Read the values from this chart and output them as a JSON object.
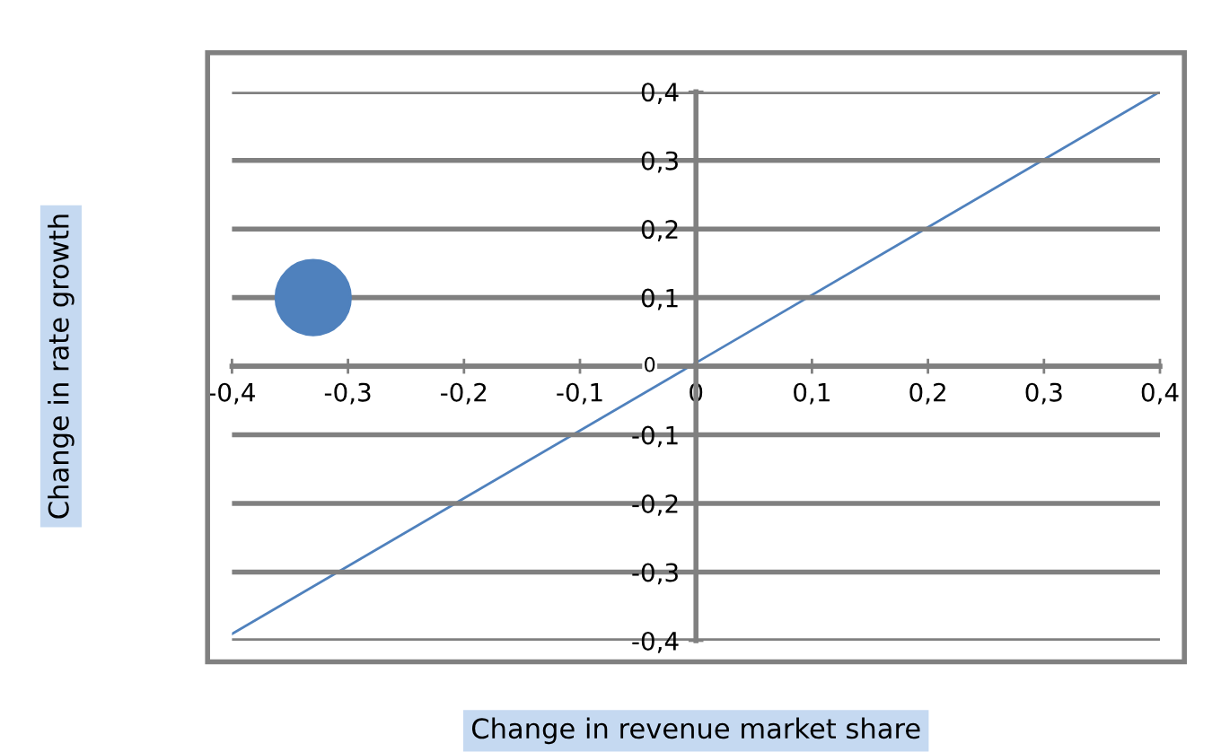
{
  "chart_data": {
    "type": "scatter",
    "xlabel": "Change in revenue market share",
    "ylabel": "Change in rate growth",
    "series": [
      {
        "color": "#4f81bd",
        "x": [
          -0.33
        ],
        "values": [
          0.1
        ],
        "marker": "circle"
      },
      {
        "type": "line",
        "color": "#4f81bd",
        "x": [
          -0.4,
          0.4
        ],
        "values": [
          -0.39,
          0.4
        ],
        "marker": "none",
        "line_style": "solid"
      }
    ],
    "xlim": [
      -0.4,
      0.4
    ],
    "ylim": [
      -0.4,
      0.4
    ],
    "xticks": [
      {
        "value": -0.4,
        "label": "-0,4"
      },
      {
        "value": -0.3,
        "label": "-0,3"
      },
      {
        "value": -0.2,
        "label": "-0,2"
      },
      {
        "value": -0.1,
        "label": "-0,1"
      },
      {
        "value": 0,
        "label": "0"
      },
      {
        "value": 0.1,
        "label": "0,1"
      },
      {
        "value": 0.2,
        "label": "0,2"
      },
      {
        "value": 0.3,
        "label": "0,3"
      },
      {
        "value": 0.4,
        "label": "0,4"
      }
    ],
    "yticks": [
      {
        "value": -0.4,
        "label": "-0,4"
      },
      {
        "value": -0.3,
        "label": "-0,3"
      },
      {
        "value": -0.2,
        "label": "-0,2"
      },
      {
        "value": -0.1,
        "label": "-0,1"
      },
      {
        "value": 0,
        "label": "0"
      },
      {
        "value": 0.1,
        "label": "0,1"
      },
      {
        "value": 0.2,
        "label": "0,2"
      },
      {
        "value": 0.3,
        "label": "0,3"
      },
      {
        "value": 0.4,
        "label": "0,4"
      }
    ],
    "grid": "y",
    "legend": false
  }
}
